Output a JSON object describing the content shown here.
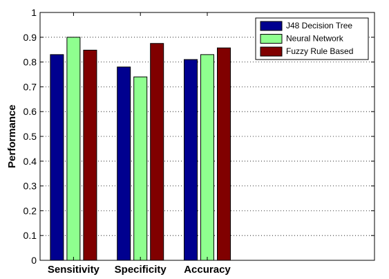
{
  "chart_data": {
    "type": "bar",
    "categories": [
      "Sensitivity",
      "Specificity",
      "Accuracy"
    ],
    "series": [
      {
        "name": "J48 Decision Tree",
        "values": [
          0.83,
          0.78,
          0.81
        ],
        "color": "#00008f"
      },
      {
        "name": "Neural Network",
        "values": [
          0.9,
          0.74,
          0.83
        ],
        "color": "#8fff8f"
      },
      {
        "name": "Fuzzy Rule Based",
        "values": [
          0.848,
          0.875,
          0.857
        ],
        "color": "#800000"
      }
    ],
    "title": "",
    "xlabel": "",
    "ylabel": "Performance",
    "ylim": [
      0,
      1
    ],
    "yticks": [
      "0",
      "0.1",
      "0.2",
      "0.3",
      "0.4",
      "0.5",
      "0.6",
      "0.7",
      "0.8",
      "0.9",
      "1"
    ],
    "x_slots": 5,
    "grid": "y-dotted",
    "legend_position": "top-right"
  }
}
